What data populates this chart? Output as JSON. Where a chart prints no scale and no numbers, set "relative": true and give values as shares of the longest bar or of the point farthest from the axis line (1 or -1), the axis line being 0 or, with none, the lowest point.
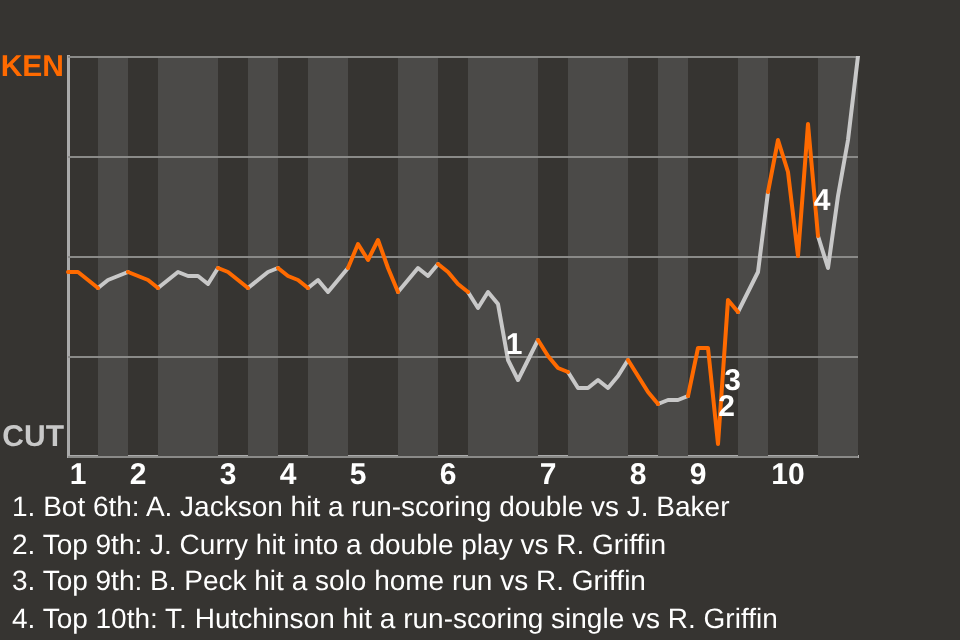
{
  "chart_data": {
    "type": "line",
    "relative": true,
    "categories": [
      null,
      "1",
      null,
      null,
      null,
      null,
      null,
      "2",
      null,
      null,
      null,
      null,
      null,
      null,
      null,
      null,
      "3",
      null,
      null,
      null,
      null,
      null,
      "4",
      null,
      null,
      null,
      null,
      null,
      null,
      "5",
      null,
      null,
      null,
      null,
      null,
      null,
      null,
      null,
      "6",
      null,
      null,
      null,
      null,
      null,
      null,
      null,
      null,
      null,
      "7",
      null,
      null,
      null,
      null,
      null,
      null,
      null,
      null,
      "8",
      null,
      null,
      null,
      null,
      null,
      "9",
      null,
      null,
      null,
      null,
      null,
      null,
      null,
      null,
      "10",
      null,
      null,
      null,
      null,
      null,
      null,
      null
    ],
    "series": [
      {
        "name": "KEN",
        "color": "#ff6a00",
        "values": [
          0.46,
          0.46,
          0.44,
          0.42,
          null,
          null,
          0.46,
          0.45,
          0.44,
          0.42,
          null,
          null,
          null,
          null,
          null,
          0.47,
          0.46,
          0.44,
          0.42,
          null,
          null,
          0.47,
          0.45,
          0.44,
          0.42,
          null,
          null,
          null,
          0.47,
          0.53,
          0.49,
          0.54,
          0.47,
          0.41,
          null,
          null,
          null,
          0.48,
          0.46,
          0.43,
          0.41,
          null,
          null,
          null,
          null,
          null,
          null,
          0.29,
          0.25,
          0.22,
          0.21,
          null,
          null,
          null,
          null,
          null,
          0.24,
          0.2,
          0.16,
          0.13,
          null,
          null,
          0.15,
          0.27,
          0.27,
          0.03,
          0.39,
          0.36,
          null,
          null,
          0.66,
          0.79,
          0.71,
          0.5,
          0.83,
          0.55,
          null,
          null,
          null,
          null
        ]
      },
      {
        "name": "CUT",
        "color": "#c8c8c8",
        "values": [
          null,
          null,
          null,
          0.42,
          0.44,
          0.45,
          0.46,
          null,
          null,
          0.42,
          0.44,
          0.46,
          0.45,
          0.45,
          0.43,
          0.47,
          null,
          null,
          0.42,
          0.44,
          0.46,
          0.47,
          null,
          null,
          0.42,
          0.44,
          0.41,
          0.44,
          0.47,
          null,
          null,
          null,
          null,
          0.41,
          0.44,
          0.47,
          0.45,
          0.48,
          null,
          null,
          0.41,
          0.37,
          0.41,
          0.38,
          0.24,
          0.19,
          0.24,
          0.29,
          null,
          null,
          0.21,
          0.17,
          0.17,
          0.19,
          0.17,
          0.2,
          0.24,
          null,
          null,
          0.13,
          0.14,
          0.14,
          0.15,
          null,
          null,
          null,
          null,
          0.36,
          0.41,
          0.46,
          0.66,
          null,
          null,
          null,
          null,
          0.55,
          0.47,
          0.65,
          0.79,
          1
        ]
      }
    ],
    "grid": "y",
    "legend": false,
    "marker": "none",
    "annotations": [
      {
        "text": "1",
        "y": 0.275
      },
      {
        "text": "2",
        "y": 0.12
      },
      {
        "text": "3",
        "y": 0.185
      },
      {
        "text": "4",
        "y": 0.635
      },
      "1. Bot 6th: A. Jackson hit a run-scoring double vs J. Baker",
      "2. Top 9th: J. Curry hit into a double play vs R. Griffin",
      "3. Top 9th: B. Peck hit a solo home run vs R. Griffin",
      "4. Top 10th: T. Hutchinson hit a run-scoring single vs R. Griffin"
    ]
  }
}
